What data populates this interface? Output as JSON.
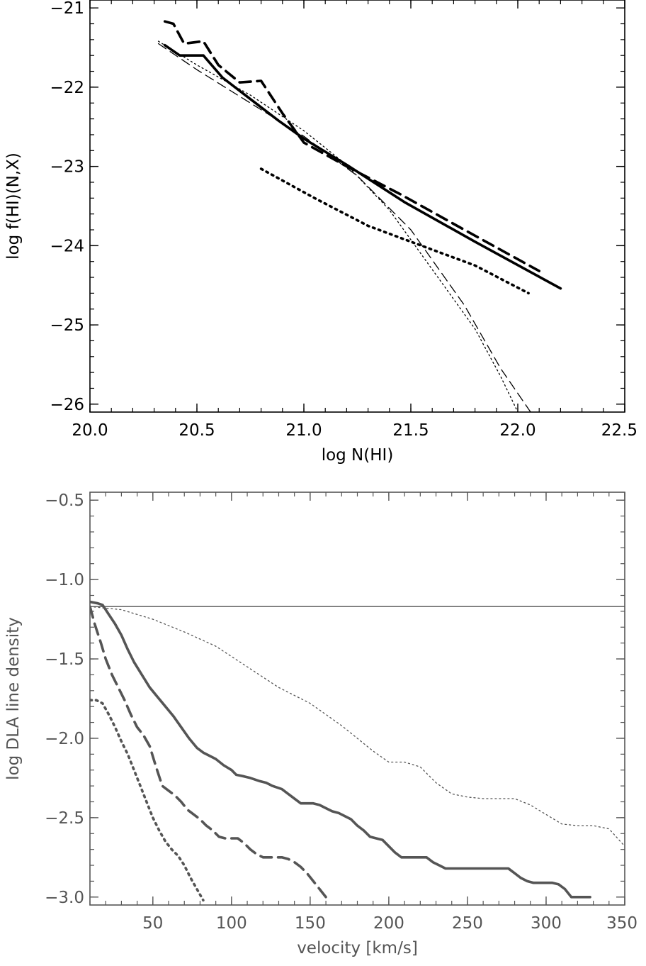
{
  "chart_data": [
    {
      "type": "line",
      "xlabel": "log N(HI)",
      "ylabel": "log f(HI)(N,X)",
      "xlim": [
        20.0,
        22.5
      ],
      "ylim": [
        -26.1,
        -20.9
      ],
      "xticks": [
        20.0,
        20.5,
        21.0,
        21.5,
        22.0,
        22.5
      ],
      "xtick_labels": [
        "20.0",
        "20.5",
        "21.0",
        "21.5",
        "22.0",
        "22.5"
      ],
      "yticks": [
        -21,
        -22,
        -23,
        -24,
        -25,
        -26
      ],
      "ytick_labels": [
        "−21",
        "−22",
        "−23",
        "−24",
        "−25",
        "−26"
      ],
      "color": "#000000",
      "series": [
        {
          "name": "thick solid",
          "style": "solid-thick",
          "x": [
            20.35,
            20.42,
            20.53,
            20.62,
            20.75,
            20.88,
            21.0,
            21.2,
            21.47,
            21.8,
            22.2
          ],
          "y": [
            -21.47,
            -21.6,
            -21.6,
            -21.88,
            -22.15,
            -22.42,
            -22.65,
            -22.98,
            -23.45,
            -23.95,
            -24.54
          ]
        },
        {
          "name": "thick dashed",
          "style": "dashed-thick",
          "x": [
            20.35,
            20.39,
            20.44,
            20.53,
            20.6,
            20.7,
            20.8,
            20.9,
            21.0,
            21.2,
            21.45,
            21.75,
            22.1
          ],
          "y": [
            -21.17,
            -21.2,
            -21.45,
            -21.42,
            -21.72,
            -21.94,
            -21.92,
            -22.33,
            -22.7,
            -23.0,
            -23.35,
            -23.8,
            -24.32
          ]
        },
        {
          "name": "thick dotted",
          "style": "dotted-thick",
          "x": [
            20.8,
            21.05,
            21.3,
            21.55,
            21.8,
            22.05
          ],
          "y": [
            -23.03,
            -23.4,
            -23.75,
            -24.0,
            -24.25,
            -24.6
          ]
        },
        {
          "name": "thin dashed fit",
          "style": "dashed-thin",
          "x": [
            20.32,
            20.5,
            20.75,
            21.0,
            21.25,
            21.5,
            21.75,
            21.92,
            22.06
          ],
          "y": [
            -21.45,
            -21.78,
            -22.2,
            -22.62,
            -23.12,
            -23.8,
            -24.75,
            -25.55,
            -26.1
          ]
        },
        {
          "name": "thin dotted fit",
          "style": "dotted-thin",
          "x": [
            20.32,
            20.5,
            20.75,
            21.0,
            21.2,
            21.4,
            21.6,
            21.8,
            21.92,
            22.0
          ],
          "y": [
            -21.42,
            -21.72,
            -22.1,
            -22.55,
            -22.98,
            -23.55,
            -24.3,
            -25.05,
            -25.65,
            -26.1
          ]
        }
      ]
    },
    {
      "type": "line",
      "xlabel": "velocity [km/s]",
      "ylabel": "log DLA line density",
      "xlim": [
        10,
        350
      ],
      "ylim": [
        -3.05,
        -0.45
      ],
      "xticks": [
        50,
        100,
        150,
        200,
        250,
        300,
        350
      ],
      "xtick_labels": [
        "50",
        "100",
        "150",
        "200",
        "250",
        "300",
        "350"
      ],
      "yticks": [
        -0.5,
        -1.0,
        -1.5,
        -2.0,
        -2.5,
        -3.0
      ],
      "ytick_labels": [
        "−0.5",
        "−1.0",
        "−1.5",
        "−2.0",
        "−2.5",
        "−3.0"
      ],
      "color": "#555555",
      "hline": -1.17,
      "series": [
        {
          "name": "solid",
          "style": "solid-thick",
          "x": [
            10,
            15,
            18,
            22,
            26,
            30,
            34,
            38,
            43,
            48,
            53,
            58,
            63,
            68,
            73,
            78,
            82,
            86,
            90,
            95,
            100,
            103,
            108,
            112,
            118,
            122,
            126,
            132,
            136,
            140,
            144,
            148,
            152,
            156,
            160,
            164,
            168,
            172,
            176,
            180,
            184,
            188,
            192,
            196,
            200,
            204,
            208,
            212,
            216,
            220,
            224,
            228,
            232,
            236,
            240,
            244,
            248,
            252,
            256,
            260,
            264,
            268,
            272,
            276,
            280,
            284,
            288,
            292,
            296,
            300,
            304,
            308,
            312,
            316,
            320,
            324,
            328
          ],
          "y": [
            -1.14,
            -1.15,
            -1.16,
            -1.22,
            -1.28,
            -1.35,
            -1.44,
            -1.52,
            -1.6,
            -1.68,
            -1.74,
            -1.8,
            -1.86,
            -1.93,
            -2.0,
            -2.06,
            -2.09,
            -2.11,
            -2.13,
            -2.17,
            -2.2,
            -2.23,
            -2.24,
            -2.25,
            -2.27,
            -2.28,
            -2.3,
            -2.32,
            -2.35,
            -2.38,
            -2.41,
            -2.41,
            -2.41,
            -2.42,
            -2.44,
            -2.46,
            -2.47,
            -2.49,
            -2.51,
            -2.55,
            -2.58,
            -2.62,
            -2.63,
            -2.64,
            -2.68,
            -2.72,
            -2.75,
            -2.75,
            -2.75,
            -2.75,
            -2.75,
            -2.78,
            -2.8,
            -2.82,
            -2.82,
            -2.82,
            -2.82,
            -2.82,
            -2.82,
            -2.82,
            -2.82,
            -2.82,
            -2.82,
            -2.82,
            -2.85,
            -2.88,
            -2.9,
            -2.91,
            -2.91,
            -2.91,
            -2.91,
            -2.92,
            -2.95,
            -3.0,
            -3.0,
            -3.0,
            -3.0
          ]
        },
        {
          "name": "dashed",
          "style": "dashed-thick",
          "x": [
            10,
            13,
            17,
            20,
            24,
            28,
            32,
            36,
            40,
            44,
            48,
            52,
            56,
            60,
            64,
            68,
            72,
            76,
            80,
            84,
            88,
            92,
            96,
            100,
            104,
            108,
            112,
            116,
            120,
            124,
            128,
            132,
            136,
            140,
            144,
            148,
            152,
            156,
            160
          ],
          "y": [
            -1.17,
            -1.28,
            -1.4,
            -1.5,
            -1.6,
            -1.68,
            -1.76,
            -1.85,
            -1.93,
            -1.98,
            -2.05,
            -2.18,
            -2.3,
            -2.33,
            -2.36,
            -2.4,
            -2.45,
            -2.48,
            -2.51,
            -2.55,
            -2.58,
            -2.62,
            -2.63,
            -2.63,
            -2.63,
            -2.66,
            -2.7,
            -2.73,
            -2.75,
            -2.75,
            -2.75,
            -2.75,
            -2.76,
            -2.78,
            -2.81,
            -2.85,
            -2.9,
            -2.95,
            -3.0
          ]
        },
        {
          "name": "dotted",
          "style": "dotted-thick",
          "x": [
            10,
            14,
            18,
            22,
            26,
            30,
            34,
            38,
            42,
            46,
            50,
            54,
            58,
            62,
            66,
            70,
            74,
            78,
            82
          ],
          "y": [
            -1.76,
            -1.76,
            -1.78,
            -1.85,
            -1.93,
            -2.02,
            -2.1,
            -2.2,
            -2.3,
            -2.4,
            -2.5,
            -2.58,
            -2.65,
            -2.7,
            -2.74,
            -2.8,
            -2.88,
            -2.95,
            -3.02
          ]
        },
        {
          "name": "thin dotted",
          "style": "dotted-thin",
          "x": [
            10,
            30,
            50,
            70,
            90,
            110,
            130,
            150,
            170,
            190,
            200,
            210,
            220,
            230,
            240,
            250,
            260,
            270,
            280,
            290,
            300,
            310,
            320,
            330,
            340,
            350
          ],
          "y": [
            -1.17,
            -1.19,
            -1.25,
            -1.33,
            -1.42,
            -1.55,
            -1.68,
            -1.78,
            -1.92,
            -2.08,
            -2.15,
            -2.15,
            -2.18,
            -2.28,
            -2.35,
            -2.37,
            -2.38,
            -2.38,
            -2.38,
            -2.42,
            -2.48,
            -2.54,
            -2.55,
            -2.55,
            -2.57,
            -2.68
          ]
        }
      ]
    }
  ]
}
